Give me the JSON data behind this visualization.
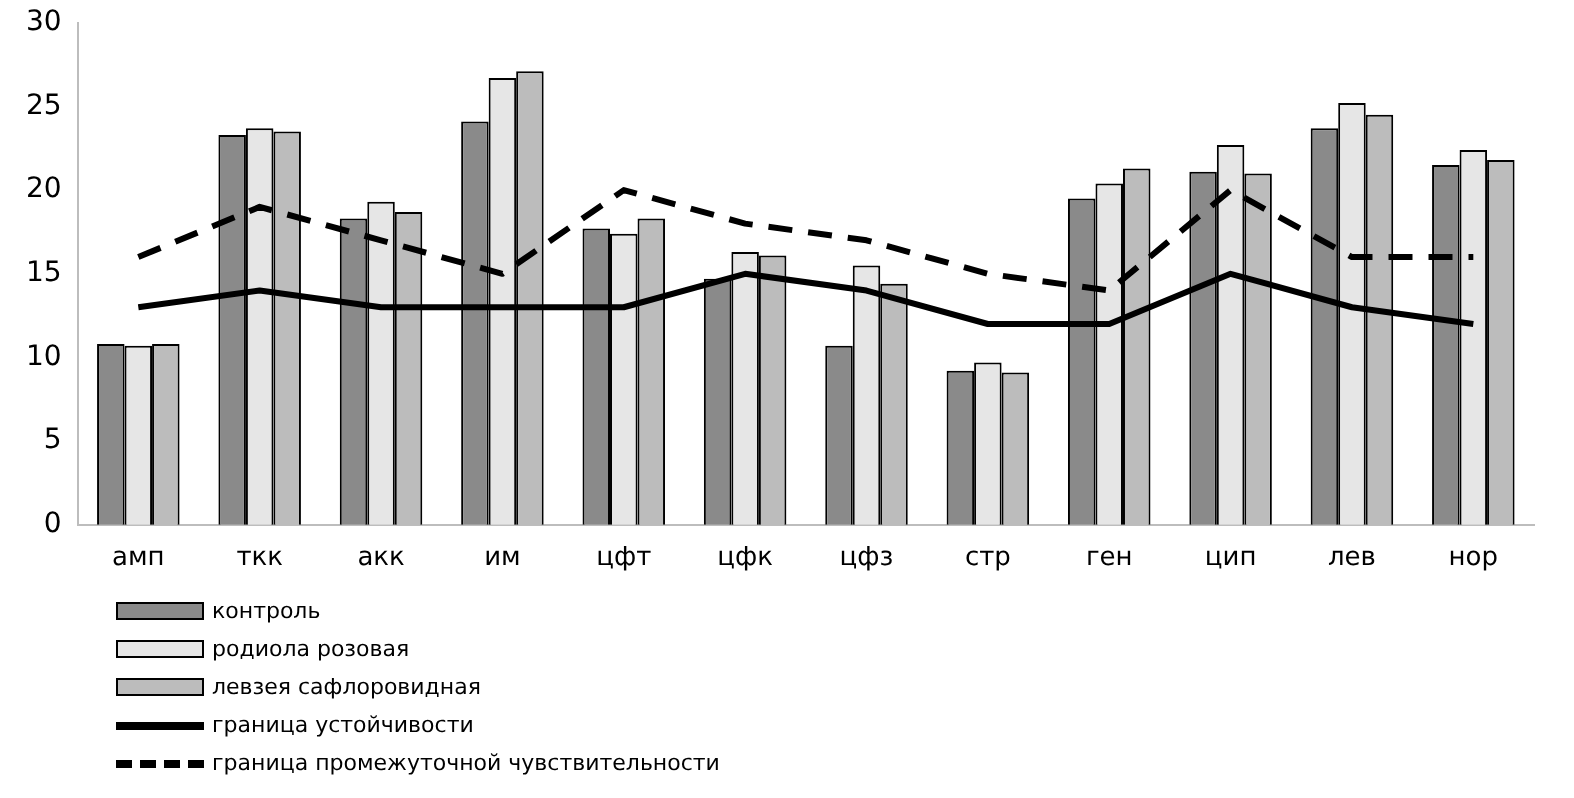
{
  "chart_data": {
    "type": "bar",
    "categories": [
      "амп",
      "ткк",
      "акк",
      "им",
      "цфт",
      "цфк",
      "цфз",
      "стр",
      "ген",
      "цип",
      "лев",
      "нор"
    ],
    "series": [
      {
        "name": "контроль",
        "color": "#8a8a8a",
        "values": [
          10.8,
          23.3,
          18.3,
          24.1,
          17.7,
          14.7,
          10.7,
          9.2,
          19.5,
          21.1,
          23.7,
          21.5
        ]
      },
      {
        "name": "родиола розовая",
        "color": "#e6e6e6",
        "values": [
          10.7,
          23.7,
          19.3,
          26.7,
          17.4,
          16.3,
          15.5,
          9.7,
          20.4,
          22.7,
          25.2,
          22.4
        ]
      },
      {
        "name": "левзея сафлоровидная",
        "color": "#bcbcbc",
        "values": [
          10.8,
          23.5,
          18.7,
          27.1,
          18.3,
          16.1,
          14.4,
          9.1,
          21.3,
          21.0,
          24.5,
          21.8
        ]
      },
      {
        "name": "граница устойчивости",
        "type": "line",
        "color": "#000000",
        "line_style": "solid",
        "values": [
          13,
          14,
          13,
          13,
          13,
          15,
          14,
          12,
          12,
          15,
          13,
          12
        ]
      },
      {
        "name": "граница промежуточной чувствительности",
        "type": "line",
        "color": "#000000",
        "line_style": "dashed",
        "values": [
          16,
          19,
          17,
          15,
          20,
          18,
          17,
          15,
          14,
          20,
          16,
          16
        ]
      }
    ],
    "ylim": [
      0,
      30
    ],
    "yticks": [
      0,
      5,
      10,
      15,
      20,
      25,
      30
    ],
    "grid": false,
    "legend": "bottom",
    "marker": "none"
  }
}
